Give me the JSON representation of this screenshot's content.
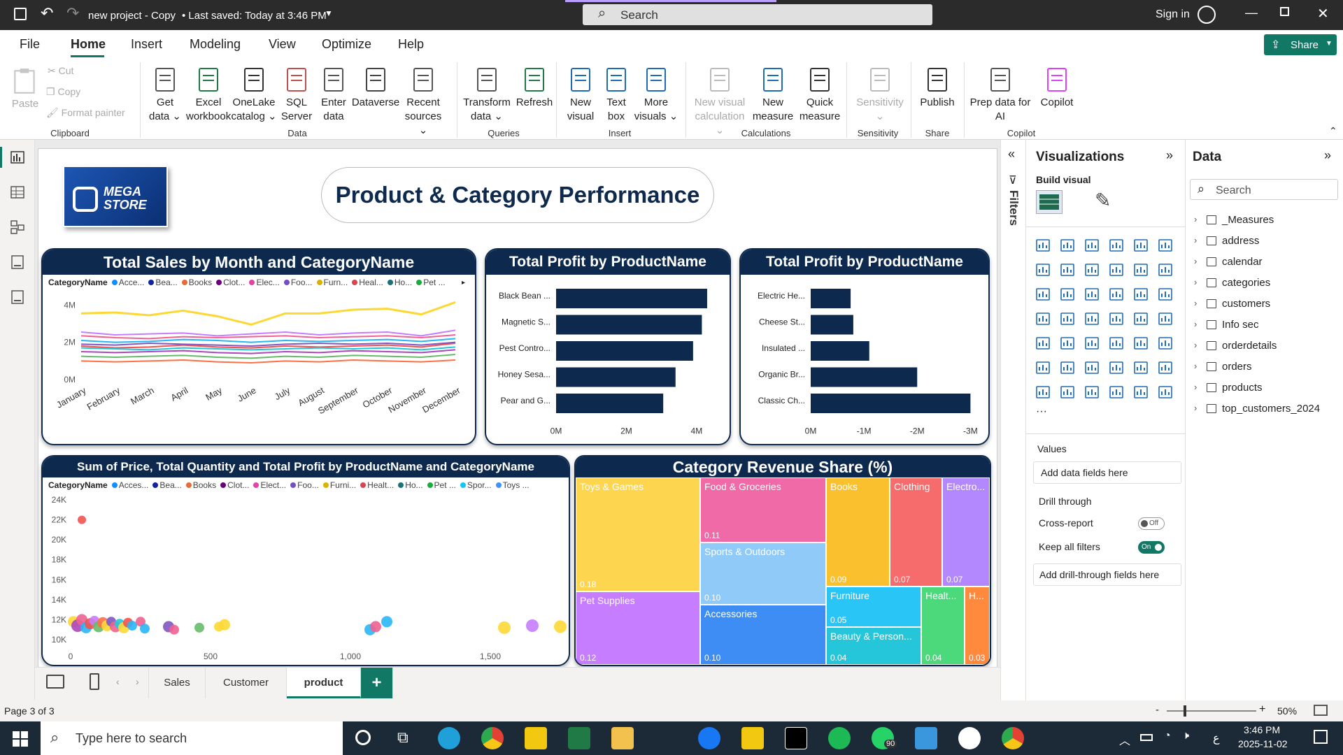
{
  "titlebar": {
    "title": "new project - Copy",
    "saved": "• Last saved: Today at 3:46 PM",
    "search": "Search",
    "signin": "Sign in"
  },
  "menu": {
    "items": [
      "File",
      "Home",
      "Insert",
      "Modeling",
      "View",
      "Optimize",
      "Help"
    ],
    "active": "Home",
    "share": "Share"
  },
  "ribbon": {
    "clipboard": {
      "paste": "Paste",
      "cut": "Cut",
      "copy": "Copy",
      "format_painter": "Format painter",
      "group": "Clipboard"
    },
    "data": {
      "buttons": [
        [
          "Get",
          "data ⌄"
        ],
        [
          "Excel",
          "workbook"
        ],
        [
          "OneLake",
          "catalog ⌄"
        ],
        [
          "SQL",
          "Server"
        ],
        [
          "Enter",
          "data"
        ],
        [
          "Dataverse",
          ""
        ],
        [
          "Recent",
          "sources ⌄"
        ]
      ],
      "group": "Data"
    },
    "queries": {
      "buttons": [
        [
          "Transform",
          "data ⌄"
        ],
        [
          "Refresh",
          ""
        ]
      ],
      "group": "Queries"
    },
    "insert": {
      "buttons": [
        [
          "New",
          "visual"
        ],
        [
          "Text",
          "box"
        ],
        [
          "More",
          "visuals ⌄"
        ]
      ],
      "group": "Insert"
    },
    "calculations": {
      "buttons": [
        [
          "New visual",
          "calculation ⌄"
        ],
        [
          "New",
          "measure"
        ],
        [
          "Quick",
          "measure"
        ]
      ],
      "group": "Calculations"
    },
    "sensitivity": {
      "buttons": [
        [
          "Sensitivity",
          "⌄"
        ]
      ],
      "group": "Sensitivity"
    },
    "share": {
      "buttons": [
        [
          "Publish",
          ""
        ]
      ],
      "group": "Share"
    },
    "copilot": {
      "buttons": [
        [
          "Prep data for",
          "AI"
        ],
        [
          "Copilot",
          ""
        ]
      ],
      "group": "Copilot"
    }
  },
  "report": {
    "logo_text": "MEGA STORE",
    "title": "Product & Category Performance",
    "line_chart": {
      "title": "Total Sales by Month and CategoryName",
      "legend_label": "CategoryName",
      "legend": [
        [
          "Acce...",
          "#118dff"
        ],
        [
          "Bea...",
          "#12239e"
        ],
        [
          "Books",
          "#e66c37"
        ],
        [
          "Clot...",
          "#6b007b"
        ],
        [
          "Elec...",
          "#e044a7"
        ],
        [
          "Foo...",
          "#744ec2"
        ],
        [
          "Furn...",
          "#d9b300"
        ],
        [
          "Heal...",
          "#d64550"
        ],
        [
          "Ho...",
          "#197278"
        ],
        [
          "Pet ...",
          "#1aab40"
        ]
      ],
      "yticks": [
        "4M",
        "2M",
        "0M"
      ]
    },
    "bar1": {
      "title": "Total Profit by ProductName",
      "xticks": [
        "0M",
        "2M",
        "4M"
      ]
    },
    "bar2": {
      "title": "Total Profit by ProductName",
      "xticks": [
        "0M",
        "-1M",
        "-2M",
        "-3M"
      ]
    },
    "scatter": {
      "title": "Sum of Price, Total Quantity and Total Profit by ProductName and CategoryName",
      "legend_label": "CategoryName",
      "legend": [
        [
          "Acces...",
          "#118dff"
        ],
        [
          "Bea...",
          "#12239e"
        ],
        [
          "Books",
          "#e66c37"
        ],
        [
          "Clot...",
          "#6b007b"
        ],
        [
          "Elect...",
          "#e044a7"
        ],
        [
          "Foo...",
          "#744ec2"
        ],
        [
          "Furni...",
          "#d9b300"
        ],
        [
          "Healt...",
          "#d64550"
        ],
        [
          "Ho...",
          "#197278"
        ],
        [
          "Pet ...",
          "#1aab40"
        ],
        [
          "Spor...",
          "#15c6f4"
        ],
        [
          "Toys ...",
          "#4092ff"
        ]
      ],
      "yticks": [
        "24K",
        "22K",
        "20K",
        "18K",
        "16K",
        "14K",
        "12K",
        "10K"
      ],
      "xticks": [
        "0",
        "500",
        "1,000",
        "1,500"
      ]
    },
    "treemap": {
      "title": "Category Revenue Share (%)"
    }
  },
  "chart_data": [
    {
      "type": "line",
      "title": "Total Sales by Month and CategoryName",
      "x": [
        "January",
        "February",
        "March",
        "April",
        "May",
        "June",
        "July",
        "August",
        "September",
        "October",
        "November",
        "December"
      ],
      "ylim": [
        0,
        4500000
      ],
      "series": [
        {
          "name": "Acce...",
          "color": "#fdd835",
          "values": [
            3550000,
            3600000,
            3450000,
            3700000,
            3400000,
            2950000,
            3550000,
            3550000,
            3750000,
            3800000,
            3500000,
            4150000
          ]
        },
        {
          "name": "Bea...",
          "color": "#c77dff",
          "values": [
            2550000,
            2400000,
            2450000,
            2500000,
            2350000,
            2450000,
            2550000,
            2400000,
            2500000,
            2550000,
            2350000,
            2650000
          ]
        },
        {
          "name": "Books",
          "color": "#f06292",
          "values": [
            2350000,
            2250000,
            2200000,
            2300000,
            2250000,
            2300000,
            2350000,
            2250000,
            2300000,
            2350000,
            2250000,
            2400000
          ]
        },
        {
          "name": "Clot...",
          "color": "#ef5350",
          "values": [
            1800000,
            1700000,
            1750000,
            1850000,
            1750000,
            1700000,
            1800000,
            1750000,
            1800000,
            1850000,
            1750000,
            1950000
          ]
        },
        {
          "name": "Elec...",
          "color": "#29b6f6",
          "values": [
            2100000,
            2000000,
            2050000,
            2150000,
            2100000,
            2000000,
            2100000,
            2050000,
            2100000,
            2150000,
            2050000,
            2200000
          ]
        },
        {
          "name": "Foo...",
          "color": "#ab47bc",
          "values": [
            1500000,
            1450000,
            1500000,
            1550000,
            1450000,
            1400000,
            1500000,
            1450000,
            1550000,
            1500000,
            1450000,
            1600000
          ]
        },
        {
          "name": "Furn...",
          "color": "#66bb6a",
          "values": [
            1250000,
            1200000,
            1250000,
            1300000,
            1200000,
            1150000,
            1250000,
            1200000,
            1300000,
            1250000,
            1200000,
            1350000
          ]
        },
        {
          "name": "Heal...",
          "color": "#ff7043",
          "values": [
            1000000,
            950000,
            1000000,
            1050000,
            950000,
            900000,
            1000000,
            950000,
            1050000,
            1000000,
            950000,
            1050000
          ]
        },
        {
          "name": "Ho...",
          "color": "#26c6da",
          "values": [
            1700000,
            1650000,
            1600000,
            1700000,
            1650000,
            1600000,
            1650000,
            1700000,
            1650000,
            1700000,
            1600000,
            1750000
          ]
        },
        {
          "name": "Pet ...",
          "color": "#7e57c2",
          "values": [
            1900000,
            1850000,
            1950000,
            1900000,
            1850000,
            1800000,
            1900000,
            1950000,
            1900000,
            1950000,
            1850000,
            2000000
          ]
        }
      ]
    },
    {
      "type": "bar",
      "title": "Total Profit by ProductName",
      "categories": [
        "Black Bean ...",
        "Magnetic S...",
        "Pest Contro...",
        "Honey Sesa...",
        "Pear and G..."
      ],
      "values": [
        4300000,
        4150000,
        3900000,
        3400000,
        3050000
      ],
      "xlim": [
        0,
        4500000
      ]
    },
    {
      "type": "bar",
      "title": "Total Profit by ProductName",
      "categories": [
        "Electric He...",
        "Cheese St...",
        "Insulated ...",
        "Organic Br...",
        "Classic Ch..."
      ],
      "values": [
        -750000,
        -800000,
        -1100000,
        -2000000,
        -3000000
      ],
      "xlim": [
        0,
        -3100000
      ]
    },
    {
      "type": "scatter",
      "title": "Sum of Price, Total Quantity and Total Profit by ProductName and CategoryName",
      "xlim": [
        0,
        1750
      ],
      "ylim": [
        10000,
        24000
      ],
      "points": [
        {
          "x": 40,
          "y": 22000,
          "color": "#ef5350",
          "r": 6
        },
        {
          "x": 10,
          "y": 11800,
          "color": "#fdd835",
          "r": 8
        },
        {
          "x": 25,
          "y": 11400,
          "color": "#ab47bc",
          "r": 9
        },
        {
          "x": 40,
          "y": 12000,
          "color": "#f06292",
          "r": 8
        },
        {
          "x": 55,
          "y": 11200,
          "color": "#29b6f6",
          "r": 8
        },
        {
          "x": 70,
          "y": 11600,
          "color": "#ef5350",
          "r": 8
        },
        {
          "x": 85,
          "y": 11900,
          "color": "#c77dff",
          "r": 7
        },
        {
          "x": 100,
          "y": 11300,
          "color": "#66bb6a",
          "r": 8
        },
        {
          "x": 115,
          "y": 11700,
          "color": "#ff7043",
          "r": 8
        },
        {
          "x": 130,
          "y": 11400,
          "color": "#fdd835",
          "r": 8
        },
        {
          "x": 145,
          "y": 11800,
          "color": "#7e57c2",
          "r": 7
        },
        {
          "x": 160,
          "y": 11300,
          "color": "#f06292",
          "r": 8
        },
        {
          "x": 175,
          "y": 11600,
          "color": "#26c6da",
          "r": 7
        },
        {
          "x": 190,
          "y": 11200,
          "color": "#fdd835",
          "r": 8
        },
        {
          "x": 205,
          "y": 11700,
          "color": "#ef5350",
          "r": 7
        },
        {
          "x": 220,
          "y": 11400,
          "color": "#29b6f6",
          "r": 7
        },
        {
          "x": 250,
          "y": 11800,
          "color": "#f06292",
          "r": 7
        },
        {
          "x": 265,
          "y": 11100,
          "color": "#29b6f6",
          "r": 7
        },
        {
          "x": 350,
          "y": 11300,
          "color": "#7e57c2",
          "r": 8
        },
        {
          "x": 370,
          "y": 11000,
          "color": "#f06292",
          "r": 7
        },
        {
          "x": 460,
          "y": 11200,
          "color": "#66bb6a",
          "r": 7
        },
        {
          "x": 530,
          "y": 11300,
          "color": "#fdd835",
          "r": 7
        },
        {
          "x": 550,
          "y": 11500,
          "color": "#fdd835",
          "r": 8
        },
        {
          "x": 1070,
          "y": 11000,
          "color": "#29b6f6",
          "r": 8
        },
        {
          "x": 1090,
          "y": 11300,
          "color": "#f06292",
          "r": 8
        },
        {
          "x": 1130,
          "y": 11800,
          "color": "#29b6f6",
          "r": 8
        },
        {
          "x": 1550,
          "y": 11200,
          "color": "#fdd835",
          "r": 9
        },
        {
          "x": 1650,
          "y": 11400,
          "color": "#c77dff",
          "r": 9
        },
        {
          "x": 1750,
          "y": 11300,
          "color": "#fdd835",
          "r": 9
        }
      ]
    },
    {
      "type": "treemap",
      "title": "Category Revenue Share (%)",
      "tiles": [
        {
          "label": "Toys & Games",
          "value": "0.18",
          "color": "#fdd54f"
        },
        {
          "label": "Pet Supplies",
          "value": "0.12",
          "color": "#c77dff"
        },
        {
          "label": "Food & Groceries",
          "value": "0.11",
          "color": "#f06aa8"
        },
        {
          "label": "Sports & Outdoors",
          "value": "0.10",
          "color": "#90caf9"
        },
        {
          "label": "Accessories",
          "value": "0.10",
          "color": "#3d8df5"
        },
        {
          "label": "Books",
          "value": "0.09",
          "color": "#fbc02d"
        },
        {
          "label": "Clothing",
          "value": "0.07",
          "color": "#f66b6b"
        },
        {
          "label": "Electro...",
          "value": "0.07",
          "color": "#b388ff"
        },
        {
          "label": "Furniture",
          "value": "0.05",
          "color": "#29c5f6"
        },
        {
          "label": "Beauty & Person...",
          "value": "0.04",
          "color": "#26c6da"
        },
        {
          "label": "Healt...",
          "value": "0.04",
          "color": "#4cd97b"
        },
        {
          "label": "H...",
          "value": "0.03",
          "color": "#ff8a3d"
        }
      ]
    }
  ],
  "filters_label": "Filters",
  "viz_pane": {
    "title": "Visualizations",
    "build": "Build visual",
    "values": "Values",
    "add_data": "Add data fields here",
    "drill": "Drill through",
    "cross": "Cross-report",
    "cross_state": "Off",
    "keep": "Keep all filters",
    "keep_state": "On",
    "add_drill": "Add drill-through fields here"
  },
  "data_pane": {
    "title": "Data",
    "search": "Search",
    "fields": [
      "_Measures",
      "address",
      "calendar",
      "categories",
      "customers",
      "Info sec",
      "orderdetails",
      "orders",
      "products",
      "top_customers_2024"
    ]
  },
  "tabs": {
    "items": [
      "Sales",
      "Customer",
      "product"
    ],
    "active": "product",
    "add": "+"
  },
  "status": {
    "page": "Page 3 of 3",
    "zoom": "50%",
    "minus": "-",
    "plus": "+"
  },
  "taskbar": {
    "search": "Type here to search",
    "time": "3:46 PM",
    "date": "2025-11-02",
    "badge": "90",
    "lang": "ع"
  }
}
